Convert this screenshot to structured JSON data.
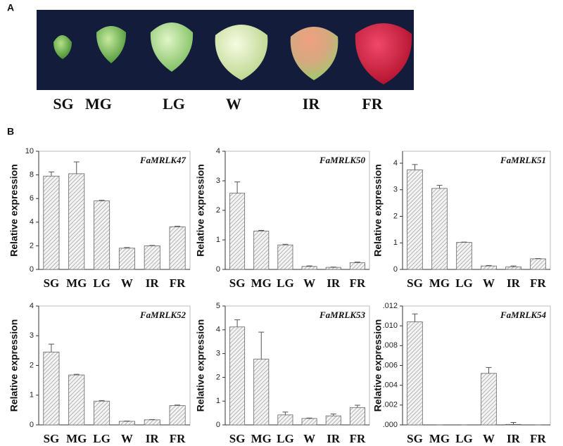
{
  "figure": {
    "panel_a": "A",
    "panel_b": "B",
    "stages": [
      "SG",
      "MG",
      "LG",
      "W",
      "IR",
      "FR"
    ]
  },
  "chart_data": [
    {
      "type": "bar",
      "title": "FaMRLK47",
      "ylabel": "Relative expression",
      "categories": [
        "SG",
        "MG",
        "LG",
        "W",
        "IR",
        "FR"
      ],
      "values": [
        7.9,
        8.1,
        5.8,
        1.8,
        2.0,
        3.6
      ],
      "errors": [
        0.35,
        1.0,
        0.05,
        0.05,
        0.03,
        0.05
      ],
      "ylim": [
        0,
        10
      ],
      "yticks": [
        0,
        2,
        4,
        6,
        8,
        10
      ],
      "color": "#9a9a9a"
    },
    {
      "type": "bar",
      "title": "FaMRLK50",
      "ylabel": "Relative expression",
      "categories": [
        "SG",
        "MG",
        "LG",
        "W",
        "IR",
        "FR"
      ],
      "values": [
        2.58,
        1.3,
        0.83,
        0.1,
        0.07,
        0.23
      ],
      "errors": [
        0.38,
        0.02,
        0.02,
        0.02,
        0.01,
        0.02
      ],
      "ylim": [
        0,
        4
      ],
      "yticks": [
        0,
        1,
        2,
        3,
        4
      ],
      "color": "#9a9a9a"
    },
    {
      "type": "bar",
      "title": "FaMRLK51",
      "ylabel": "Relative expression",
      "categories": [
        "SG",
        "MG",
        "LG",
        "W",
        "IR",
        "FR"
      ],
      "values": [
        3.75,
        3.05,
        1.02,
        0.13,
        0.1,
        0.4
      ],
      "errors": [
        0.2,
        0.12,
        0.01,
        0.02,
        0.03,
        0.01
      ],
      "ylim": [
        0,
        4.45
      ],
      "yticks": [
        0,
        1,
        2,
        3,
        4
      ],
      "color": "#9a9a9a"
    },
    {
      "type": "bar",
      "title": "FaMRLK52",
      "ylabel": "Relative expression",
      "categories": [
        "SG",
        "MG",
        "LG",
        "W",
        "IR",
        "FR"
      ],
      "values": [
        2.45,
        1.68,
        0.8,
        0.12,
        0.17,
        0.65
      ],
      "errors": [
        0.27,
        0.02,
        0.02,
        0.01,
        0.01,
        0.02
      ],
      "ylim": [
        0,
        4
      ],
      "yticks": [
        0,
        1,
        2,
        3,
        4
      ],
      "color": "#9a9a9a"
    },
    {
      "type": "bar",
      "title": "FaMRLK53",
      "ylabel": "Relative expression",
      "categories": [
        "SG",
        "MG",
        "LG",
        "W",
        "IR",
        "FR"
      ],
      "values": [
        4.12,
        2.77,
        0.42,
        0.27,
        0.38,
        0.73
      ],
      "errors": [
        0.3,
        1.13,
        0.12,
        0.02,
        0.08,
        0.1
      ],
      "ylim": [
        0,
        5
      ],
      "yticks": [
        0,
        1,
        2,
        3,
        4,
        5
      ],
      "color": "#9a9a9a"
    },
    {
      "type": "bar",
      "title": "FaMRLK54",
      "ylabel": "Relative expression",
      "categories": [
        "SG",
        "MG",
        "LG",
        "W",
        "IR",
        "FR"
      ],
      "values": [
        0.0104,
        0,
        0,
        0.0052,
        5e-05,
        0
      ],
      "errors": [
        0.0008,
        0,
        0,
        0.0006,
        0.0002,
        0
      ],
      "ylim": [
        0,
        0.012
      ],
      "yticks": [
        {
          "value": 0,
          "label": ".000"
        },
        {
          "value": 0.002,
          "label": ".002"
        },
        {
          "value": 0.004,
          "label": ".004"
        },
        {
          "value": 0.006,
          "label": ".006"
        },
        {
          "value": 0.008,
          "label": ".008"
        },
        {
          "value": 0.01,
          "label": ".010"
        },
        {
          "value": 0.012,
          "label": ".012"
        }
      ],
      "color": "#9a9a9a"
    }
  ]
}
